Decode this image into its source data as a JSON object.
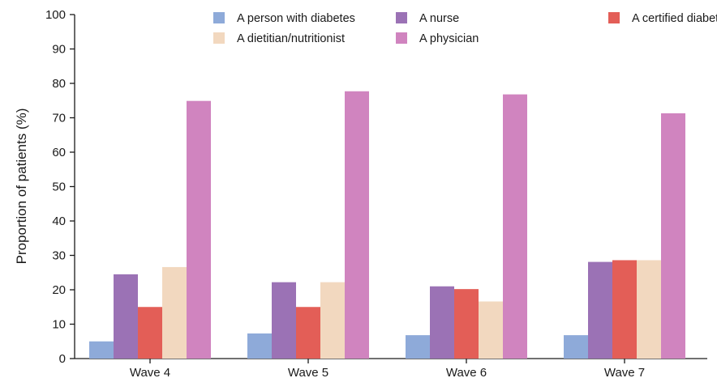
{
  "chart_data": {
    "type": "bar",
    "title": "",
    "xlabel": "",
    "ylabel": "Proportion of patients (%)",
    "ylim": [
      0,
      100
    ],
    "yticks": [
      0,
      10,
      20,
      30,
      40,
      50,
      60,
      70,
      80,
      90,
      100
    ],
    "grid": false,
    "legend_position": "top-right",
    "categories": [
      "Wave 4",
      "Wave 5",
      "Wave 6",
      "Wave 7"
    ],
    "series": [
      {
        "name": "A person with diabetes",
        "color": "#8eaad9",
        "values": [
          5,
          7.3,
          6.8,
          6.8
        ]
      },
      {
        "name": "A nurse",
        "color": "#9b72b5",
        "values": [
          24.5,
          22.2,
          21,
          28.1
        ]
      },
      {
        "name": "A certified diabetes educator",
        "color": "#e35e57",
        "values": [
          15,
          15,
          20.2,
          28.6
        ]
      },
      {
        "name": "A dietitian/nutritionist",
        "color": "#f2d8bf",
        "values": [
          26.6,
          22.2,
          16.6,
          28.6
        ]
      },
      {
        "name": "A physician",
        "color": "#d084bf",
        "values": [
          74.9,
          77.7,
          76.8,
          71.3
        ]
      }
    ]
  }
}
